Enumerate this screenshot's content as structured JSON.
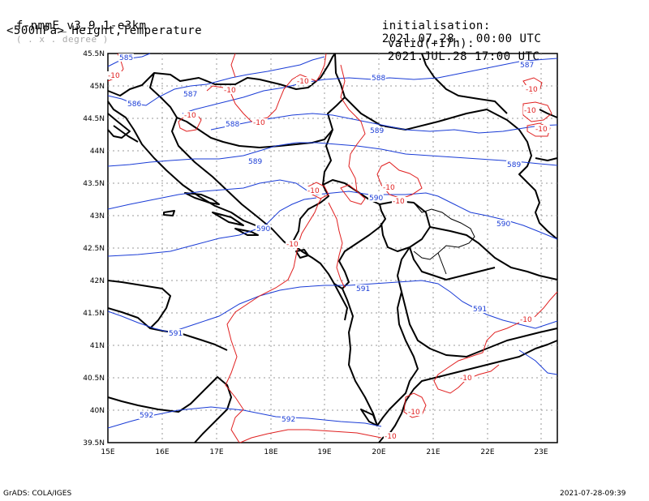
{
  "header": {
    "model": "f-nmmE_v3.9.1-e3km",
    "grid_note": "( . x . degree )",
    "init_label": "initialisation:",
    "init_value": "2021.07.28.  00:00 UTC",
    "level_field": "<500hPa> Height,Temperature",
    "valid_label": "valid(+17h):",
    "valid_value": "2021.JUL.28 17:00 UTC"
  },
  "axes": {
    "lon_ticks": [
      "15E",
      "16E",
      "17E",
      "18E",
      "19E",
      "20E",
      "21E",
      "22E",
      "23E"
    ],
    "lat_ticks": [
      "39.5N",
      "40N",
      "40.5N",
      "41N",
      "41.5N",
      "42N",
      "42.5N",
      "43N",
      "43.5N",
      "44N",
      "44.5N",
      "45N",
      "45.5N"
    ]
  },
  "contours": {
    "height_color": "#1a3cd6",
    "temperature_color": "#e02020",
    "height_labels": [
      "585",
      "586",
      "587",
      "587",
      "588",
      "588",
      "589",
      "589",
      "589",
      "590",
      "590",
      "590",
      "591",
      "591",
      "591",
      "592",
      "592"
    ],
    "temperature_labels": [
      "-10",
      "-10",
      "-10",
      "-10",
      "-10",
      "-10",
      "-10",
      "-10",
      "-10",
      "-10",
      "-10",
      "-10",
      "-10",
      "-10",
      "-10",
      "-10"
    ]
  },
  "footer": {
    "left": "GrADS: COLA/IGES",
    "right": "2021-07-28-09:39"
  }
}
